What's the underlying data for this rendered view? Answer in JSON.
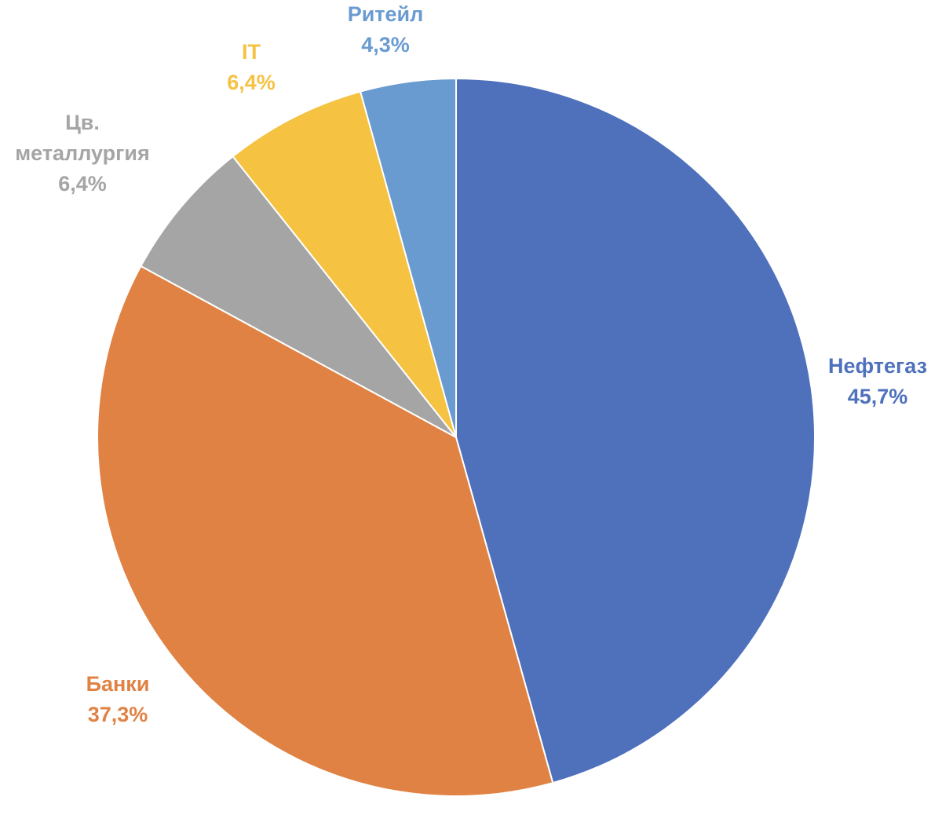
{
  "chart_data": {
    "type": "pie",
    "start": "12 o'clock",
    "direction": "clockwise",
    "slices": [
      {
        "category": "Нефтегаз",
        "value": 45.7,
        "label": "45,7%",
        "color": "#4F71BC"
      },
      {
        "category": "Банки",
        "value": 37.3,
        "label": "37,3%",
        "color": "#E08244"
      },
      {
        "category_lines": [
          "Цв.",
          "металлургия"
        ],
        "value": 6.4,
        "label": "6,4%",
        "color": "#A5A5A5"
      },
      {
        "category": "IT",
        "value": 6.4,
        "label": "6,4%",
        "color": "#F5C242"
      },
      {
        "category": "Ритейл",
        "value": 4.3,
        "label": "4,3%",
        "color": "#6A9BD0"
      }
    ]
  }
}
